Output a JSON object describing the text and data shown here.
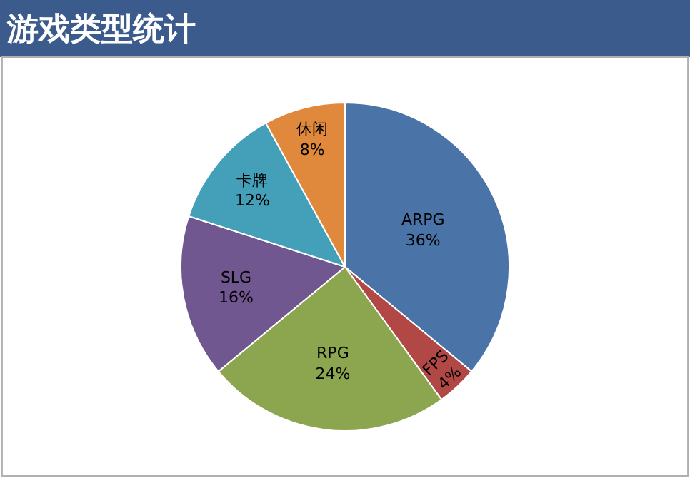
{
  "chart_data": {
    "type": "pie",
    "title": "游戏类型统计",
    "categories": [
      "ARPG",
      "FPS",
      "RPG",
      "SLG",
      "卡牌",
      "休闲"
    ],
    "values": [
      36,
      4,
      24,
      16,
      12,
      8
    ],
    "value_labels": [
      "36%",
      "4%",
      "24%",
      "16%",
      "12%",
      "8%"
    ],
    "colors": [
      "#4a73a8",
      "#b14846",
      "#8ca64f",
      "#71578f",
      "#43a0b8",
      "#e0893c"
    ]
  }
}
